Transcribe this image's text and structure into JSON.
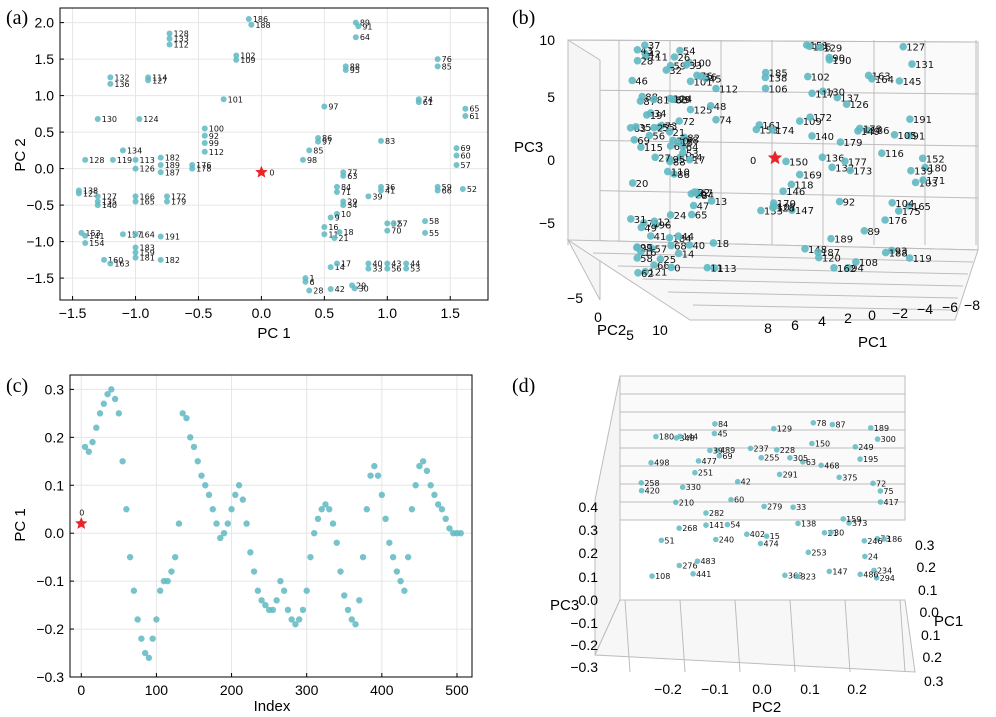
{
  "panels": {
    "a": {
      "label": "(a)",
      "xlabel": "PC 1",
      "ylabel": "PC 2",
      "xticks": [
        "−1.5",
        "−1.0",
        "−0.5",
        "0.0",
        "0.5",
        "1.0",
        "1.5"
      ],
      "yticks": [
        "−1.5",
        "−1.0",
        "−0.5",
        "0.0",
        "0.5",
        "1.0",
        "1.5",
        "2.0"
      ]
    },
    "b": {
      "label": "(b)",
      "xlabel": "PC2",
      "ylabel": "PC1",
      "zlabel": "PC3",
      "zticks": [
        "10",
        "5",
        "0",
        "−5"
      ],
      "xticks": [
        "−5",
        "0",
        "5",
        "10"
      ],
      "yticks": [
        "8",
        "6",
        "4",
        "2",
        "0",
        "−2",
        "−4",
        "−6",
        "−8"
      ]
    },
    "c": {
      "label": "(c)",
      "xlabel": "Index",
      "ylabel": "PC 1",
      "xticks": [
        "0",
        "100",
        "200",
        "300",
        "400",
        "500"
      ],
      "yticks": [
        "0.3",
        "0.2",
        "0.1",
        "0.0",
        "−0.1",
        "−0.2",
        "−0.3"
      ]
    },
    "d": {
      "label": "(d)",
      "xlabel": "PC2",
      "ylabel": "PC1",
      "zlabel": "PC3",
      "zticks": [
        "0.4",
        "0.3",
        "0.2",
        "0.1",
        "0.0",
        "−0.1",
        "−0.2",
        "−0.3"
      ],
      "xticks": [
        "−0.2",
        "−0.1",
        "0.0",
        "0.1",
        "0.2"
      ],
      "yticks": [
        "0.3",
        "0.2",
        "0.1",
        "0.0",
        "0.1",
        "0.2",
        "0.3"
      ]
    }
  },
  "colors": {
    "points": "#5fb8c2",
    "origin_marker": "#e8262a",
    "grid": "#e6e6e6"
  },
  "chart_data": [
    {
      "panel": "a",
      "type": "scatter",
      "xlabel": "PC 1",
      "ylabel": "PC 2",
      "xlim": [
        -1.6,
        1.8
      ],
      "ylim": [
        -1.8,
        2.2
      ],
      "origin": {
        "label": "0",
        "x": 0.0,
        "y": -0.05
      },
      "points": [
        {
          "x": -0.1,
          "y": 2.05,
          "label": "186"
        },
        {
          "x": -0.08,
          "y": 1.97,
          "label": "188"
        },
        {
          "x": 0.75,
          "y": 2.0,
          "label": "89"
        },
        {
          "x": 0.77,
          "y": 1.95,
          "label": "91"
        },
        {
          "x": 0.75,
          "y": 1.8,
          "label": "64"
        },
        {
          "x": -0.73,
          "y": 1.85,
          "label": "128"
        },
        {
          "x": -0.73,
          "y": 1.78,
          "label": "133"
        },
        {
          "x": -0.73,
          "y": 1.7,
          "label": "112"
        },
        {
          "x": -0.2,
          "y": 1.55,
          "label": "102"
        },
        {
          "x": -0.2,
          "y": 1.49,
          "label": "109"
        },
        {
          "x": 0.67,
          "y": 1.4,
          "label": "88"
        },
        {
          "x": 0.67,
          "y": 1.35,
          "label": "95"
        },
        {
          "x": 1.4,
          "y": 1.5,
          "label": "76"
        },
        {
          "x": 1.4,
          "y": 1.4,
          "label": "85"
        },
        {
          "x": -1.2,
          "y": 1.25,
          "label": "132"
        },
        {
          "x": -1.2,
          "y": 1.16,
          "label": "136"
        },
        {
          "x": -0.9,
          "y": 1.25,
          "label": "114"
        },
        {
          "x": -0.9,
          "y": 1.21,
          "label": "127"
        },
        {
          "x": -0.3,
          "y": 0.95,
          "label": "101"
        },
        {
          "x": 0.5,
          "y": 0.85,
          "label": "97"
        },
        {
          "x": 1.25,
          "y": 0.95,
          "label": "74"
        },
        {
          "x": 1.25,
          "y": 0.91,
          "label": "61"
        },
        {
          "x": 1.62,
          "y": 0.82,
          "label": "65"
        },
        {
          "x": 1.62,
          "y": 0.72,
          "label": "61"
        },
        {
          "x": -1.3,
          "y": 0.68,
          "label": "130"
        },
        {
          "x": -0.97,
          "y": 0.68,
          "label": "124"
        },
        {
          "x": -0.45,
          "y": 0.55,
          "label": "100"
        },
        {
          "x": -0.45,
          "y": 0.45,
          "label": "92"
        },
        {
          "x": -0.45,
          "y": 0.35,
          "label": "99"
        },
        {
          "x": -0.45,
          "y": 0.23,
          "label": "112"
        },
        {
          "x": 0.45,
          "y": 0.42,
          "label": "86"
        },
        {
          "x": 0.45,
          "y": 0.37,
          "label": "97"
        },
        {
          "x": 0.38,
          "y": 0.25,
          "label": "85"
        },
        {
          "x": 0.33,
          "y": 0.12,
          "label": "98"
        },
        {
          "x": 0.95,
          "y": 0.38,
          "label": "83"
        },
        {
          "x": 1.55,
          "y": 0.28,
          "label": "69"
        },
        {
          "x": 1.55,
          "y": 0.18,
          "label": "60"
        },
        {
          "x": 1.55,
          "y": 0.05,
          "label": "57"
        },
        {
          "x": -1.4,
          "y": 0.12,
          "label": "128"
        },
        {
          "x": -1.18,
          "y": 0.12,
          "label": "119"
        },
        {
          "x": -1.0,
          "y": 0.12,
          "label": "113"
        },
        {
          "x": -0.8,
          "y": 0.15,
          "label": "182"
        },
        {
          "x": -0.8,
          "y": 0.05,
          "label": "189"
        },
        {
          "x": -0.55,
          "y": 0.05,
          "label": "176"
        },
        {
          "x": -0.55,
          "y": 0.0,
          "label": "178"
        },
        {
          "x": -1.1,
          "y": 0.25,
          "label": "134"
        },
        {
          "x": -1.0,
          "y": 0.0,
          "label": "126"
        },
        {
          "x": -0.8,
          "y": -0.05,
          "label": "187"
        },
        {
          "x": 0.65,
          "y": -0.05,
          "label": "77"
        },
        {
          "x": 0.65,
          "y": -0.1,
          "label": "63"
        },
        {
          "x": 0.6,
          "y": -0.25,
          "label": "84"
        },
        {
          "x": 0.6,
          "y": -0.32,
          "label": "71"
        },
        {
          "x": 0.95,
          "y": -0.25,
          "label": "36"
        },
        {
          "x": 0.95,
          "y": -0.3,
          "label": "41"
        },
        {
          "x": 1.4,
          "y": -0.25,
          "label": "59"
        },
        {
          "x": 1.4,
          "y": -0.3,
          "label": "66"
        },
        {
          "x": 1.6,
          "y": -0.28,
          "label": "52"
        },
        {
          "x": 0.85,
          "y": -0.38,
          "label": "39"
        },
        {
          "x": 0.65,
          "y": -0.45,
          "label": "29"
        },
        {
          "x": 0.65,
          "y": -0.5,
          "label": "34"
        },
        {
          "x": 0.6,
          "y": -0.62,
          "label": "10"
        },
        {
          "x": 0.55,
          "y": -0.67,
          "label": "9"
        },
        {
          "x": -1.45,
          "y": -0.3,
          "label": "138"
        },
        {
          "x": -1.45,
          "y": -0.34,
          "label": "125"
        },
        {
          "x": -1.3,
          "y": -0.38,
          "label": "127"
        },
        {
          "x": -1.3,
          "y": -0.45,
          "label": "135"
        },
        {
          "x": -1.3,
          "y": -0.5,
          "label": "140"
        },
        {
          "x": -1.0,
          "y": -0.38,
          "label": "166"
        },
        {
          "x": -1.0,
          "y": -0.45,
          "label": "165"
        },
        {
          "x": -0.75,
          "y": -0.38,
          "label": "172"
        },
        {
          "x": -0.75,
          "y": -0.45,
          "label": "179"
        },
        {
          "x": 1.0,
          "y": -0.75,
          "label": "32"
        },
        {
          "x": 1.05,
          "y": -0.75,
          "label": "57"
        },
        {
          "x": 1.3,
          "y": -0.72,
          "label": "58"
        },
        {
          "x": 1.0,
          "y": -0.85,
          "label": "70"
        },
        {
          "x": 1.3,
          "y": -0.88,
          "label": "55"
        },
        {
          "x": 0.5,
          "y": -0.8,
          "label": "16"
        },
        {
          "x": 0.5,
          "y": -0.9,
          "label": "11"
        },
        {
          "x": 0.62,
          "y": -0.87,
          "label": "18"
        },
        {
          "x": 0.58,
          "y": -0.95,
          "label": "21"
        },
        {
          "x": -1.43,
          "y": -0.88,
          "label": "153"
        },
        {
          "x": -1.4,
          "y": -0.92,
          "label": "141"
        },
        {
          "x": -1.4,
          "y": -1.02,
          "label": "154"
        },
        {
          "x": -1.1,
          "y": -0.9,
          "label": "157"
        },
        {
          "x": -1.0,
          "y": -0.9,
          "label": "164"
        },
        {
          "x": -0.8,
          "y": -0.93,
          "label": "191"
        },
        {
          "x": -1.0,
          "y": -1.08,
          "label": "183"
        },
        {
          "x": -1.0,
          "y": -1.15,
          "label": "159"
        },
        {
          "x": -1.0,
          "y": -1.22,
          "label": "181"
        },
        {
          "x": -0.8,
          "y": -1.25,
          "label": "182"
        },
        {
          "x": -1.25,
          "y": -1.25,
          "label": "160"
        },
        {
          "x": -1.2,
          "y": -1.3,
          "label": "163"
        },
        {
          "x": 0.55,
          "y": -1.35,
          "label": "14"
        },
        {
          "x": 0.6,
          "y": -1.3,
          "label": "17"
        },
        {
          "x": 0.85,
          "y": -1.3,
          "label": "40"
        },
        {
          "x": 0.85,
          "y": -1.37,
          "label": "33"
        },
        {
          "x": 1.0,
          "y": -1.3,
          "label": "43"
        },
        {
          "x": 1.0,
          "y": -1.37,
          "label": "56"
        },
        {
          "x": 1.15,
          "y": -1.3,
          "label": "44"
        },
        {
          "x": 1.15,
          "y": -1.37,
          "label": "53"
        },
        {
          "x": 0.35,
          "y": -1.5,
          "label": "1"
        },
        {
          "x": 0.35,
          "y": -1.55,
          "label": "6"
        },
        {
          "x": 0.72,
          "y": -1.6,
          "label": "29"
        },
        {
          "x": 0.74,
          "y": -1.64,
          "label": "30"
        },
        {
          "x": 0.55,
          "y": -1.65,
          "label": "42"
        },
        {
          "x": 0.38,
          "y": -1.67,
          "label": "28"
        }
      ]
    },
    {
      "panel": "b",
      "type": "scatter",
      "xlabel": "PC2",
      "ylabel": "PC1",
      "zlabel": "PC3",
      "zlim": [
        -10,
        12
      ],
      "origin": {
        "label": "0"
      },
      "labels": [
        "86",
        "87",
        "88",
        "97",
        "98",
        "96",
        "100",
        "99",
        "101",
        "114",
        "111",
        "113",
        "115",
        "112",
        "110",
        "125",
        "121",
        "124",
        "72",
        "71",
        "73",
        "58",
        "57",
        "83",
        "82",
        "84",
        "88",
        "59",
        "69",
        "70",
        "74",
        "95",
        "184",
        "61",
        "81",
        "76",
        "12",
        "11",
        "18",
        "67",
        "54",
        "55",
        "56",
        "65",
        "66",
        "63",
        "64",
        "62",
        "68",
        "53",
        "49",
        "48",
        "46",
        "47",
        "40",
        "41",
        "42",
        "43",
        "44",
        "45",
        "26",
        "27",
        "35",
        "34",
        "36",
        "37",
        "33",
        "32",
        "30",
        "31",
        "24",
        "25",
        "22",
        "23",
        "29",
        "28",
        "19",
        "20",
        "21",
        "14",
        "15",
        "16",
        "17",
        "13",
        "0",
        "91",
        "92",
        "93",
        "94",
        "89",
        "90",
        "180",
        "186",
        "176",
        "179",
        "165",
        "161",
        "162",
        "163",
        "164",
        "150",
        "151",
        "152",
        "153",
        "146",
        "147",
        "148",
        "149",
        "145",
        "140",
        "139",
        "138",
        "137",
        "136",
        "135",
        "133",
        "132",
        "131",
        "130",
        "129",
        "128",
        "127",
        "126",
        "117",
        "116",
        "118",
        "119",
        "120",
        "105",
        "106",
        "107",
        "108",
        "109",
        "102",
        "103",
        "104",
        "169",
        "170",
        "171",
        "172",
        "173",
        "174",
        "175",
        "177",
        "178",
        "185",
        "187",
        "188",
        "189",
        "190",
        "191"
      ]
    },
    {
      "panel": "c",
      "type": "scatter",
      "xlabel": "Index",
      "ylabel": "PC 1",
      "xlim": [
        -15,
        520
      ],
      "ylim": [
        -0.3,
        0.33
      ],
      "origin": {
        "label": "0",
        "x": 0,
        "y": 0.02
      },
      "x": [
        0,
        5,
        10,
        15,
        20,
        25,
        30,
        35,
        40,
        45,
        50,
        55,
        60,
        65,
        70,
        75,
        80,
        85,
        90,
        95,
        100,
        105,
        110,
        115,
        120,
        125,
        130,
        135,
        140,
        145,
        150,
        155,
        160,
        165,
        170,
        175,
        180,
        185,
        190,
        195,
        200,
        205,
        210,
        215,
        220,
        225,
        230,
        235,
        240,
        245,
        250,
        255,
        260,
        265,
        270,
        275,
        280,
        285,
        290,
        295,
        300,
        305,
        310,
        315,
        320,
        325,
        330,
        335,
        340,
        345,
        350,
        355,
        360,
        365,
        370,
        375,
        380,
        385,
        390,
        395,
        400,
        405,
        410,
        415,
        420,
        425,
        430,
        435,
        440,
        445,
        450,
        455,
        460,
        465,
        470,
        475,
        480,
        485,
        490,
        495,
        500,
        505
      ],
      "y": [
        0.2,
        0.18,
        0.17,
        0.19,
        0.22,
        0.25,
        0.27,
        0.29,
        0.3,
        0.28,
        0.25,
        0.15,
        0.05,
        -0.05,
        -0.12,
        -0.18,
        -0.22,
        -0.25,
        -0.26,
        -0.22,
        -0.18,
        -0.12,
        -0.1,
        -0.1,
        -0.08,
        -0.05,
        0.02,
        0.25,
        0.24,
        0.2,
        0.18,
        0.15,
        0.12,
        0.1,
        0.08,
        0.05,
        0.02,
        -0.01,
        0.0,
        0.02,
        0.05,
        0.08,
        0.1,
        0.07,
        0.02,
        -0.04,
        -0.08,
        -0.12,
        -0.14,
        -0.15,
        -0.16,
        -0.16,
        -0.14,
        -0.1,
        -0.12,
        -0.16,
        -0.18,
        -0.19,
        -0.18,
        -0.16,
        -0.12,
        -0.05,
        0.0,
        0.03,
        0.05,
        0.06,
        0.05,
        0.02,
        -0.02,
        -0.08,
        -0.13,
        -0.16,
        -0.18,
        -0.19,
        -0.14,
        -0.05,
        0.05,
        0.12,
        0.14,
        0.12,
        0.08,
        0.03,
        -0.02,
        -0.05,
        -0.08,
        -0.1,
        -0.12,
        -0.05,
        0.05,
        0.1,
        0.14,
        0.15,
        0.13,
        0.1,
        0.08,
        0.06,
        0.05,
        0.03,
        0.01,
        0.0,
        0.0,
        0.0
      ]
    },
    {
      "panel": "d",
      "type": "scatter",
      "xlabel": "PC2",
      "ylabel": "PC1",
      "zlabel": "PC3",
      "labels": [
        "69",
        "72",
        "63",
        "75",
        "60",
        "73",
        "54",
        "78",
        "246",
        "249",
        "251",
        "373",
        "375",
        "240",
        "51",
        "279",
        "282",
        "258",
        "84",
        "237",
        "234",
        "228",
        "276",
        "268",
        "291",
        "87",
        "108",
        "253",
        "363",
        "300",
        "441",
        "294",
        "210",
        "129",
        "330",
        "420",
        "417",
        "138",
        "195",
        "159",
        "323",
        "498",
        "402",
        "15",
        "24",
        "348",
        "305",
        "468",
        "489",
        "483",
        "486",
        "477",
        "147",
        "150",
        "141",
        "474",
        "255",
        "21",
        "30",
        "33",
        "186",
        "189",
        "42",
        "45",
        "39",
        "144",
        "180"
      ]
    }
  ]
}
